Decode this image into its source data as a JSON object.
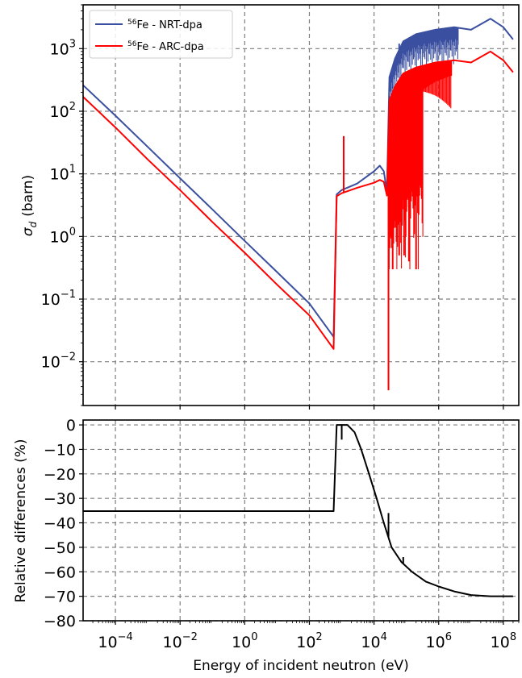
{
  "chart_data": [
    {
      "type": "line",
      "ylabel_symbol": "σ",
      "ylabel_subscript": "d",
      "ylabel_unit": "(barn)",
      "xscale": "log",
      "yscale": "log",
      "xlim": [
        1e-05,
        300000000.0
      ],
      "ylim": [
        0.002,
        5000
      ],
      "grid": true,
      "legend_position": "top-left",
      "x_ticks": [
        {
          "base": "10",
          "exp": "−4",
          "value": 0.0001
        },
        {
          "base": "10",
          "exp": "−2",
          "value": 0.01
        },
        {
          "base": "10",
          "exp": "0",
          "value": 1
        },
        {
          "base": "10",
          "exp": "2",
          "value": 100
        },
        {
          "base": "10",
          "exp": "4",
          "value": 10000
        },
        {
          "base": "10",
          "exp": "6",
          "value": 1000000
        },
        {
          "base": "10",
          "exp": "8",
          "value": 100000000
        }
      ],
      "y_ticks": [
        {
          "base": "10",
          "exp": "−2",
          "value": 0.01
        },
        {
          "base": "10",
          "exp": "−1",
          "value": 0.1
        },
        {
          "base": "10",
          "exp": "0",
          "value": 1
        },
        {
          "base": "10",
          "exp": "1",
          "value": 10
        },
        {
          "base": "10",
          "exp": "2",
          "value": 100
        },
        {
          "base": "10",
          "exp": "3",
          "value": 1000
        }
      ],
      "series": [
        {
          "name_sup": "56",
          "name": "Fe - NRT-dpa",
          "color": "#3a4fa0",
          "points": [
            [
              1e-05,
              260
            ],
            [
              0.0001,
              85
            ],
            [
              0.001,
              27
            ],
            [
              0.01,
              8.5
            ],
            [
              0.1,
              2.7
            ],
            [
              1,
              0.85
            ],
            [
              10,
              0.27
            ],
            [
              100,
              0.085
            ],
            [
              560,
              0.025
            ],
            [
              700,
              4.7
            ],
            [
              1000,
              5.5
            ],
            [
              3000,
              7
            ],
            [
              10000,
              11
            ],
            [
              15000,
              13.5
            ],
            [
              20000,
              11
            ],
            [
              25000,
              5.2
            ],
            [
              30000,
              350
            ],
            [
              45000,
              700
            ],
            [
              80000,
              1300
            ],
            [
              200000,
              1700
            ],
            [
              800000,
              2000
            ],
            [
              3000000,
              2200
            ],
            [
              10000000,
              2000
            ],
            [
              40000000,
              3000
            ],
            [
              100000000,
              2200
            ],
            [
              200000000,
              1400
            ]
          ],
          "spikes": [
            [
              1150,
              40
            ],
            [
              60000,
              1200
            ],
            [
              100000,
              1400
            ]
          ]
        },
        {
          "name_sup": "56",
          "name": "Fe - ARC-dpa",
          "color": "#ff0000",
          "points": [
            [
              1e-05,
              170
            ],
            [
              0.0001,
              55
            ],
            [
              0.001,
              17
            ],
            [
              0.01,
              5.5
            ],
            [
              0.1,
              1.7
            ],
            [
              1,
              0.55
            ],
            [
              10,
              0.17
            ],
            [
              100,
              0.055
            ],
            [
              560,
              0.016
            ],
            [
              700,
              4.4
            ],
            [
              1000,
              4.9
            ],
            [
              3000,
              6
            ],
            [
              10000,
              7.2
            ],
            [
              15000,
              8
            ],
            [
              20000,
              7.5
            ],
            [
              25000,
              4.5
            ],
            [
              30000,
              150
            ],
            [
              45000,
              250
            ],
            [
              80000,
              400
            ],
            [
              200000,
              500
            ],
            [
              800000,
              600
            ],
            [
              3000000,
              650
            ],
            [
              10000000,
              600
            ],
            [
              40000000,
              900
            ],
            [
              100000000,
              650
            ],
            [
              200000000,
              420
            ]
          ],
          "spikes": [
            [
              1150,
              40
            ],
            [
              28000,
              0.0035
            ],
            [
              60000,
              0.5
            ],
            [
              85000,
              0.5
            ],
            [
              120000,
              0.4
            ],
            [
              200000,
              0.3
            ]
          ]
        }
      ]
    },
    {
      "type": "line",
      "ylabel": "Relative differences (%)",
      "xlabel": "Energy of incident neutron (eV)",
      "xscale": "log",
      "xlim": [
        1e-05,
        300000000.0
      ],
      "ylim": [
        -80,
        2
      ],
      "grid": true,
      "x_ticks": [
        {
          "base": "10",
          "exp": "−4",
          "value": 0.0001
        },
        {
          "base": "10",
          "exp": "−2",
          "value": 0.01
        },
        {
          "base": "10",
          "exp": "0",
          "value": 1
        },
        {
          "base": "10",
          "exp": "2",
          "value": 100
        },
        {
          "base": "10",
          "exp": "4",
          "value": 10000
        },
        {
          "base": "10",
          "exp": "6",
          "value": 1000000
        },
        {
          "base": "10",
          "exp": "8",
          "value": 100000000
        }
      ],
      "y_ticks": [
        "0",
        "−10",
        "−20",
        "−30",
        "−40",
        "−50",
        "−60",
        "−70",
        "−80"
      ],
      "y_tick_values": [
        0,
        -10,
        -20,
        -30,
        -40,
        -50,
        -60,
        -70,
        -80
      ],
      "series": [
        {
          "color": "#000000",
          "points": [
            [
              1e-05,
              -35.2
            ],
            [
              560,
              -35.2
            ],
            [
              700,
              0
            ],
            [
              1500,
              0
            ],
            [
              2500,
              -3
            ],
            [
              4000,
              -10
            ],
            [
              7000,
              -20
            ],
            [
              12000,
              -30
            ],
            [
              20000,
              -40
            ],
            [
              35000,
              -50
            ],
            [
              70000,
              -56
            ],
            [
              150000,
              -60
            ],
            [
              400000,
              -64
            ],
            [
              1000000,
              -66
            ],
            [
              3000000,
              -68
            ],
            [
              10000000,
              -69.5
            ],
            [
              40000000,
              -70
            ],
            [
              200000000,
              -70
            ]
          ],
          "spikes": [
            [
              1000,
              -6
            ],
            [
              28000,
              -36
            ],
            [
              80000,
              -54
            ]
          ]
        }
      ]
    }
  ]
}
